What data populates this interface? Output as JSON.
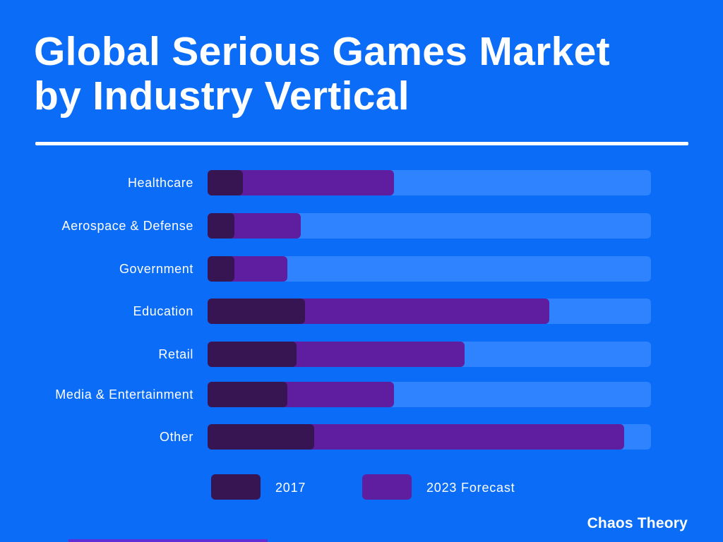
{
  "title_line1": "Global Serious Games Market",
  "title_line2": "by Industry Vertical",
  "brand": "Chaos Theory",
  "colors": {
    "background": "#0a6cf7",
    "track": "#2f83ff",
    "forecast_2023": "#5e1e9f",
    "actual_2017": "#371552",
    "text": "#ffffff"
  },
  "chart_data": {
    "type": "bar",
    "orientation": "horizontal",
    "title": "Global Serious Games Market by Industry Vertical",
    "categories": [
      "Healthcare",
      "Aerospace & Defense",
      "Government",
      "Education",
      "Retail",
      "Media & Entertainment",
      "Other"
    ],
    "series": [
      {
        "name": "2017",
        "values": [
          8,
          6,
          6,
          22,
          20,
          18,
          24
        ]
      },
      {
        "name": "2023 Forecast",
        "values": [
          42,
          21,
          18,
          77,
          58,
          42,
          94
        ]
      }
    ],
    "xlim": [
      0,
      100
    ],
    "xlabel": "",
    "ylabel": "",
    "axis_ticks_shown": false,
    "legend": [
      {
        "label": "2017",
        "color": "#371552"
      },
      {
        "label": "2023 Forecast",
        "color": "#5e1e9f"
      }
    ],
    "legend_position": "bottom"
  }
}
